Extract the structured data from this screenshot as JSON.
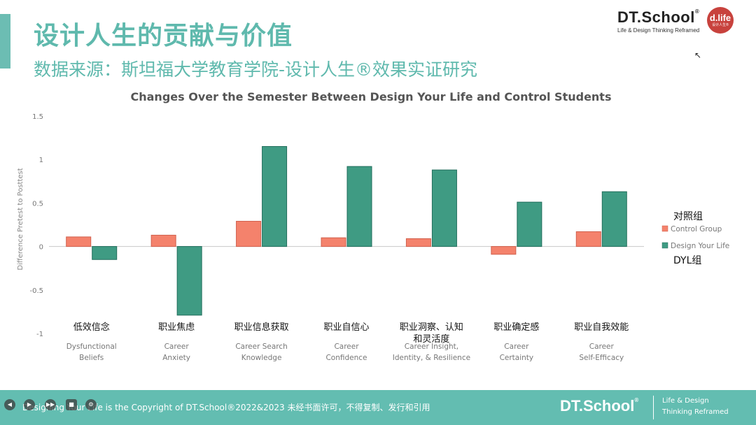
{
  "page": {
    "title": "设计人生的贡献与价值",
    "subtitle": "数据来源：斯坦福大学教育学院-设计人生®效果实证研究"
  },
  "brand": {
    "name": "DT.School",
    "reg": "®",
    "tagline": "Life & Design Thinking Reframed",
    "badge": "d.life",
    "badge_sub": "设计人生®"
  },
  "footer": {
    "text": "Designing Your Life is the  Copyright of DT.School®2022&2023  未经书面许可，不得复制、发行和引用",
    "brand": "DT.School",
    "reg": "®",
    "tag_line1": "Life & Design",
    "tag_line2": "Thinking Reframed"
  },
  "colors": {
    "accent": "#5fb9ad",
    "control": "#f4826c",
    "dyl": "#3f9b83",
    "footer": "#63bdb1",
    "badge": "#c8423d"
  },
  "icons": [
    "cursor-icon",
    "prev-icon",
    "play-icon",
    "next-icon",
    "camera-icon",
    "settings-icon"
  ],
  "chart_data": {
    "type": "bar",
    "title": "Changes Over the Semester Between Design Your Life and Control Students",
    "ylabel": "Difference Pretest to Posttest",
    "xlabel": "",
    "ylim": [
      -1,
      1.5
    ],
    "yticks": [
      "1.5",
      "1",
      "0.5",
      "0",
      "-0.5",
      "-1"
    ],
    "grid": false,
    "categories_zh": [
      "低效信念",
      "职业焦虑",
      "职业信息获取",
      "职业自信心",
      "职业洞察、认知和灵活度",
      "职业确定感",
      "职业自我效能"
    ],
    "categories": [
      [
        "Dysfunctional",
        "Beliefs"
      ],
      [
        "Career",
        "Anxiety"
      ],
      [
        "Career Search",
        "Knowledge"
      ],
      [
        "Career",
        "Confidence"
      ],
      [
        "Career Insight,",
        "Identity, & Resilience"
      ],
      [
        "Career",
        "Certainty"
      ],
      [
        "Career",
        "Self-Efficacy"
      ]
    ],
    "series": [
      {
        "name": "Control Group",
        "values": [
          0.11,
          0.13,
          0.29,
          0.1,
          0.09,
          -0.09,
          0.17
        ]
      },
      {
        "name": "Design Your Life",
        "values": [
          -0.15,
          -0.79,
          1.15,
          0.92,
          0.88,
          0.51,
          0.63
        ]
      }
    ],
    "legend": {
      "position": "right",
      "group_label_control": "对照组",
      "group_label_dyl": "DYL组"
    }
  }
}
